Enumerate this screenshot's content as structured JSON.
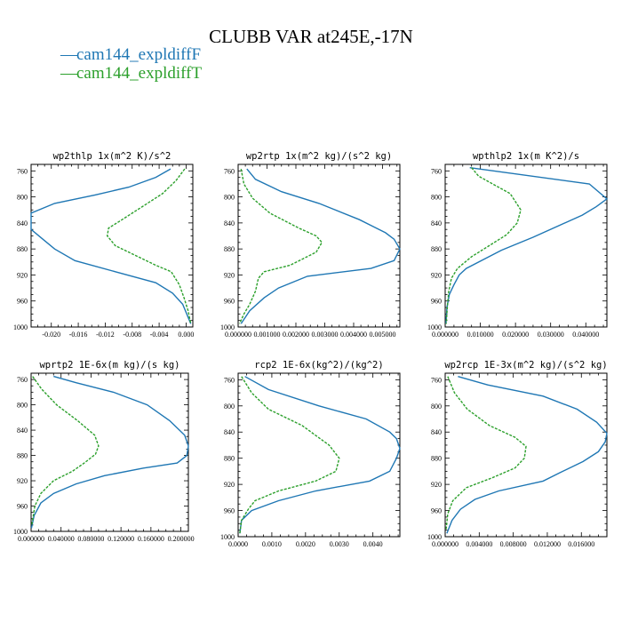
{
  "figure": {
    "title": "CLUBB VAR at245E,-17N",
    "legend": [
      {
        "label": "cam144_expldiffF",
        "color": "#1f77b4"
      },
      {
        "label": "cam144_expldiffT",
        "color": "#2ca02c"
      }
    ]
  },
  "chart_data": [
    {
      "type": "line",
      "title": "wp2thlp  1x(m^2 K)/s^2",
      "xlim": [
        -0.023,
        0.001
      ],
      "xticks": [
        -0.02,
        -0.016,
        -0.012,
        -0.008,
        -0.004,
        0.0
      ],
      "xtick_labels": [
        "-0.020",
        "-0.016",
        "-0.012",
        "-0.008",
        "-0.004",
        "0.000"
      ],
      "ylim": [
        1000,
        750
      ],
      "yticks": [
        760,
        800,
        840,
        880,
        920,
        960,
        1000
      ],
      "series": [
        {
          "name": "cam144_expldiffF",
          "x": [
            -0.0023,
            -0.0045,
            -0.0085,
            -0.0135,
            -0.0195,
            -0.023,
            -0.023,
            -0.0215,
            -0.0195,
            -0.0165,
            -0.0105,
            -0.0045,
            -0.002,
            -0.0005,
            0.0007
          ],
          "y": [
            757,
            770,
            785,
            797,
            810,
            825,
            850,
            863,
            880,
            898,
            915,
            932,
            948,
            965,
            995
          ]
        },
        {
          "name": "cam144_expldiffT",
          "x": [
            -0.0002,
            -0.0015,
            -0.0035,
            -0.0065,
            -0.0095,
            -0.0115,
            -0.0117,
            -0.0105,
            -0.0075,
            -0.0045,
            -0.0022,
            -0.001,
            -0.0003,
            0.0003,
            0.0007
          ],
          "y": [
            757,
            775,
            795,
            815,
            835,
            848,
            860,
            875,
            890,
            905,
            915,
            935,
            955,
            975,
            995
          ]
        }
      ]
    },
    {
      "type": "line",
      "title": "wp2rtp  1x(m^2 kg)/(s^2 kg)",
      "xlim": [
        0,
        0.0056
      ],
      "xticks": [
        0,
        0.001,
        0.002,
        0.003,
        0.004,
        0.005
      ],
      "xtick_labels": [
        "0.000000",
        "0.001000",
        "0.002000",
        "0.003000",
        "0.004000",
        "0.005000"
      ],
      "ylim": [
        1000,
        750
      ],
      "yticks": [
        760,
        800,
        840,
        880,
        920,
        960,
        1000
      ],
      "series": [
        {
          "name": "cam144_expldiffF",
          "x": [
            0.0003,
            0.0006,
            0.0015,
            0.0028,
            0.0042,
            0.0051,
            0.0054,
            0.0056,
            0.0054,
            0.0046,
            0.0024,
            0.0014,
            0.0009,
            0.0004,
            0.0001
          ],
          "y": [
            757,
            773,
            792,
            810,
            835,
            855,
            865,
            880,
            898,
            910,
            922,
            940,
            955,
            975,
            995
          ]
        },
        {
          "name": "cam144_expldiffT",
          "x": [
            0.0001,
            0.0002,
            0.0005,
            0.0011,
            0.0021,
            0.0027,
            0.0029,
            0.0027,
            0.0018,
            0.0009,
            0.0007,
            0.0006,
            0.0004,
            0.0002,
            5e-05
          ],
          "y": [
            757,
            780,
            802,
            825,
            848,
            860,
            870,
            885,
            905,
            915,
            925,
            945,
            965,
            980,
            995
          ]
        }
      ]
    },
    {
      "type": "line",
      "title": "wpthlp2  1x(m K^2)/s",
      "xlim": [
        0,
        0.046
      ],
      "xticks": [
        0,
        0.01,
        0.02,
        0.03,
        0.04
      ],
      "xtick_labels": [
        "0.000000",
        "0.010000",
        "0.020000",
        "0.030000",
        "0.040000"
      ],
      "ylim": [
        1000,
        750
      ],
      "yticks": [
        760,
        800,
        840,
        880,
        920,
        960,
        1000
      ],
      "series": [
        {
          "name": "cam144_expldiffF",
          "x": [
            0.007,
            0.041,
            0.046,
            0.043,
            0.039,
            0.025,
            0.016,
            0.006,
            0.004,
            0.0025,
            0.0012,
            0.0005,
            0.0002
          ],
          "y": [
            755,
            780,
            803,
            815,
            828,
            862,
            882,
            910,
            920,
            935,
            950,
            970,
            995
          ]
        },
        {
          "name": "cam144_expldiffT",
          "x": [
            0.0075,
            0.0095,
            0.0135,
            0.0185,
            0.0215,
            0.0205,
            0.0175,
            0.0125,
            0.0075,
            0.0035,
            0.0018,
            0.001,
            0.0006,
            0.0003
          ],
          "y": [
            755,
            768,
            780,
            795,
            820,
            840,
            858,
            875,
            892,
            910,
            925,
            945,
            970,
            995
          ]
        }
      ]
    },
    {
      "type": "line",
      "title": "wprtp2  1E-6x(m kg)/(s kg)",
      "xlim": [
        0,
        0.21
      ],
      "xticks": [
        0,
        0.04,
        0.08,
        0.12,
        0.16,
        0.2
      ],
      "xtick_labels": [
        "0.000000",
        "0.040000",
        "0.080000",
        "0.120000",
        "0.160000",
        "0.200000"
      ],
      "ylim": [
        1000,
        750
      ],
      "yticks": [
        760,
        800,
        840,
        880,
        920,
        960,
        1000
      ],
      "series": [
        {
          "name": "cam144_expldiffF",
          "x": [
            0.03,
            0.06,
            0.11,
            0.155,
            0.185,
            0.205,
            0.21,
            0.208,
            0.195,
            0.15,
            0.098,
            0.06,
            0.03,
            0.013,
            0.004,
            0.0005
          ],
          "y": [
            755,
            765,
            780,
            800,
            825,
            848,
            865,
            880,
            892,
            900,
            912,
            925,
            940,
            955,
            975,
            995
          ]
        },
        {
          "name": "cam144_expldiffT",
          "x": [
            0.002,
            0.014,
            0.034,
            0.062,
            0.085,
            0.09,
            0.086,
            0.071,
            0.055,
            0.03,
            0.013,
            0.005,
            0.001
          ],
          "y": [
            755,
            775,
            800,
            825,
            848,
            865,
            878,
            892,
            905,
            920,
            940,
            960,
            990
          ]
        }
      ]
    },
    {
      "type": "line",
      "title": "rcp2  1E-6x(kg^2)/(kg^2)",
      "xlim": [
        0,
        0.0048
      ],
      "xticks": [
        0,
        0.001,
        0.002,
        0.003,
        0.004
      ],
      "xtick_labels": [
        "0.0000",
        "0.0010",
        "0.0020",
        "0.0030",
        "0.0040"
      ],
      "ylim": [
        1000,
        750
      ],
      "yticks": [
        760,
        800,
        840,
        880,
        920,
        960,
        1000
      ],
      "series": [
        {
          "name": "cam144_expldiffF",
          "x": [
            0.0002,
            0.0009,
            0.0024,
            0.0038,
            0.0045,
            0.0047,
            0.0048,
            0.0047,
            0.0045,
            0.0039,
            0.0023,
            0.0012,
            0.0004,
            0.0001,
            5e-05
          ],
          "y": [
            755,
            775,
            800,
            820,
            840,
            850,
            865,
            880,
            900,
            915,
            930,
            945,
            960,
            975,
            995
          ]
        },
        {
          "name": "cam144_expldiffT",
          "x": [
            0.0001,
            0.0004,
            0.0009,
            0.0019,
            0.0027,
            0.003,
            0.0029,
            0.0023,
            0.0012,
            0.0005,
            0.0003,
            0.0001,
            5e-05
          ],
          "y": [
            755,
            780,
            805,
            830,
            860,
            880,
            900,
            915,
            930,
            945,
            958,
            975,
            995
          ]
        }
      ]
    },
    {
      "type": "line",
      "title": "wp2rcp  1E-3x(m^2 kg)/(s^2 kg)",
      "xlim": [
        0,
        0.019
      ],
      "xticks": [
        0,
        0.004,
        0.008,
        0.012,
        0.016
      ],
      "xtick_labels": [
        "0.000000",
        "0.004000",
        "0.008000",
        "0.012000",
        "0.016000"
      ],
      "ylim": [
        1000,
        750
      ],
      "yticks": [
        760,
        800,
        840,
        880,
        920,
        960,
        1000
      ],
      "series": [
        {
          "name": "cam144_expldiffF",
          "x": [
            0.0015,
            0.005,
            0.0115,
            0.0155,
            0.0178,
            0.019,
            0.0188,
            0.018,
            0.0162,
            0.0135,
            0.0115,
            0.0063,
            0.0035,
            0.0018,
            0.0008,
            0.0002
          ],
          "y": [
            755,
            768,
            785,
            805,
            825,
            842,
            855,
            870,
            885,
            902,
            915,
            930,
            943,
            958,
            975,
            995
          ]
        },
        {
          "name": "cam144_expldiffT",
          "x": [
            0.0003,
            0.0011,
            0.0026,
            0.0052,
            0.0082,
            0.0095,
            0.0093,
            0.0082,
            0.0055,
            0.0025,
            0.0009,
            0.0003,
            0.0001
          ],
          "y": [
            755,
            780,
            805,
            830,
            848,
            862,
            880,
            895,
            910,
            925,
            945,
            965,
            990
          ]
        }
      ]
    }
  ]
}
